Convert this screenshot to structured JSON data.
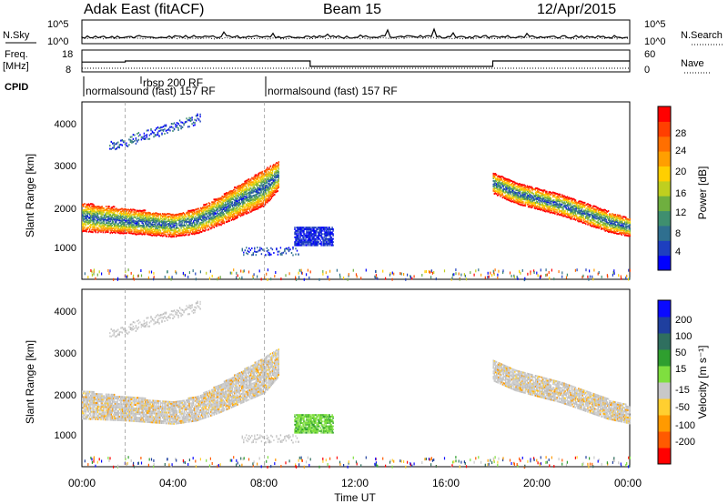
{
  "header": {
    "title": "Adak East (fitACF)",
    "beam": "Beam 15",
    "date": "12/Apr/2015"
  },
  "noise_panel": {
    "left_label": "N.Sky",
    "right_label": "N.Search",
    "ticks_left": [
      "10^5",
      "10^0"
    ],
    "ticks_right": [
      "10^5",
      "10^0"
    ]
  },
  "freq_panel": {
    "left_label_1": "Freq.",
    "left_label_2": "[MHz]",
    "right_label": "Nave",
    "ticks_left": [
      "18",
      "8"
    ],
    "ticks_right": [
      "60",
      "0"
    ]
  },
  "cpid": {
    "label": "CPID",
    "segments": [
      {
        "text": "normalsound (fast) 157 RF",
        "start_hour": 0
      },
      {
        "text": "rbsp 200 RF",
        "start_hour": 1.6
      },
      {
        "text": "normalsound (fast) 157 RF",
        "start_hour": 8.0
      }
    ]
  },
  "axes": {
    "ylabel": "Slant Range [km]",
    "xlabel": "Time UT",
    "x_ticks": [
      "00:00",
      "04:00",
      "08:00",
      "12:00",
      "16:00",
      "20:00",
      "00:00"
    ],
    "y_ticks": [
      "1000",
      "2000",
      "3000",
      "4000"
    ]
  },
  "power_colorbar": {
    "label": "Power [dB]",
    "ticks": [
      "28",
      "24",
      "20",
      "16",
      "12",
      "8",
      "4"
    ],
    "colors": [
      "#0000ff",
      "#1e3fbf",
      "#2f6f8f",
      "#3f8f6f",
      "#6faf3f",
      "#bfcf1f",
      "#ffcf00",
      "#ff9f00",
      "#ff6f00",
      "#ff3f00",
      "#ff0000"
    ]
  },
  "velocity_colorbar": {
    "label": "Velocity [m s⁻¹]",
    "ticks": [
      "200",
      "100",
      "50",
      "15",
      "-15",
      "-50",
      "-100",
      "-200"
    ],
    "colors": [
      "#ff0000",
      "#ff5a00",
      "#ff9a00",
      "#ffcf30",
      "#c8c8c8",
      "#7fdf3f",
      "#2f9f2f",
      "#2f6f5f",
      "#1f3f9f",
      "#0a0aff"
    ]
  },
  "chart_data": {
    "type": "heatmap",
    "title": "Adak East (fitACF)",
    "xlabel": "Time UT",
    "ylabel": "Slant Range [km]",
    "xlim": [
      0,
      24
    ],
    "ylim": [
      180,
      4600
    ],
    "freq_steps_mhz": [
      {
        "from": 0,
        "to": 1.9,
        "value": 12.5
      },
      {
        "from": 1.9,
        "to": 10.0,
        "value": 13.0
      },
      {
        "from": 10.0,
        "to": 18.0,
        "value": 10.5
      },
      {
        "from": 18.0,
        "to": 24.0,
        "value": 13.0
      }
    ],
    "power_bands": [
      {
        "name": "dusk echo band",
        "t": [
          0,
          2,
          4,
          5,
          6,
          7,
          8,
          8.6
        ],
        "r": [
          1750,
          1650,
          1550,
          1650,
          1900,
          2200,
          2500,
          2800
        ],
        "w": [
          350,
          300,
          280,
          300,
          350,
          400,
          450,
          350
        ]
      },
      {
        "name": "night band",
        "t": [
          18,
          19,
          20,
          21,
          22,
          23,
          24
        ],
        "r": [
          2600,
          2350,
          2200,
          2050,
          1850,
          1650,
          1500
        ],
        "w": [
          250,
          250,
          250,
          250,
          250,
          250,
          220
        ]
      }
    ],
    "velocity_patches": [
      {
        "name": "green patch",
        "t_range": [
          9.3,
          11
        ],
        "r_range": [
          1050,
          1500
        ],
        "velocity": 50
      }
    ]
  }
}
